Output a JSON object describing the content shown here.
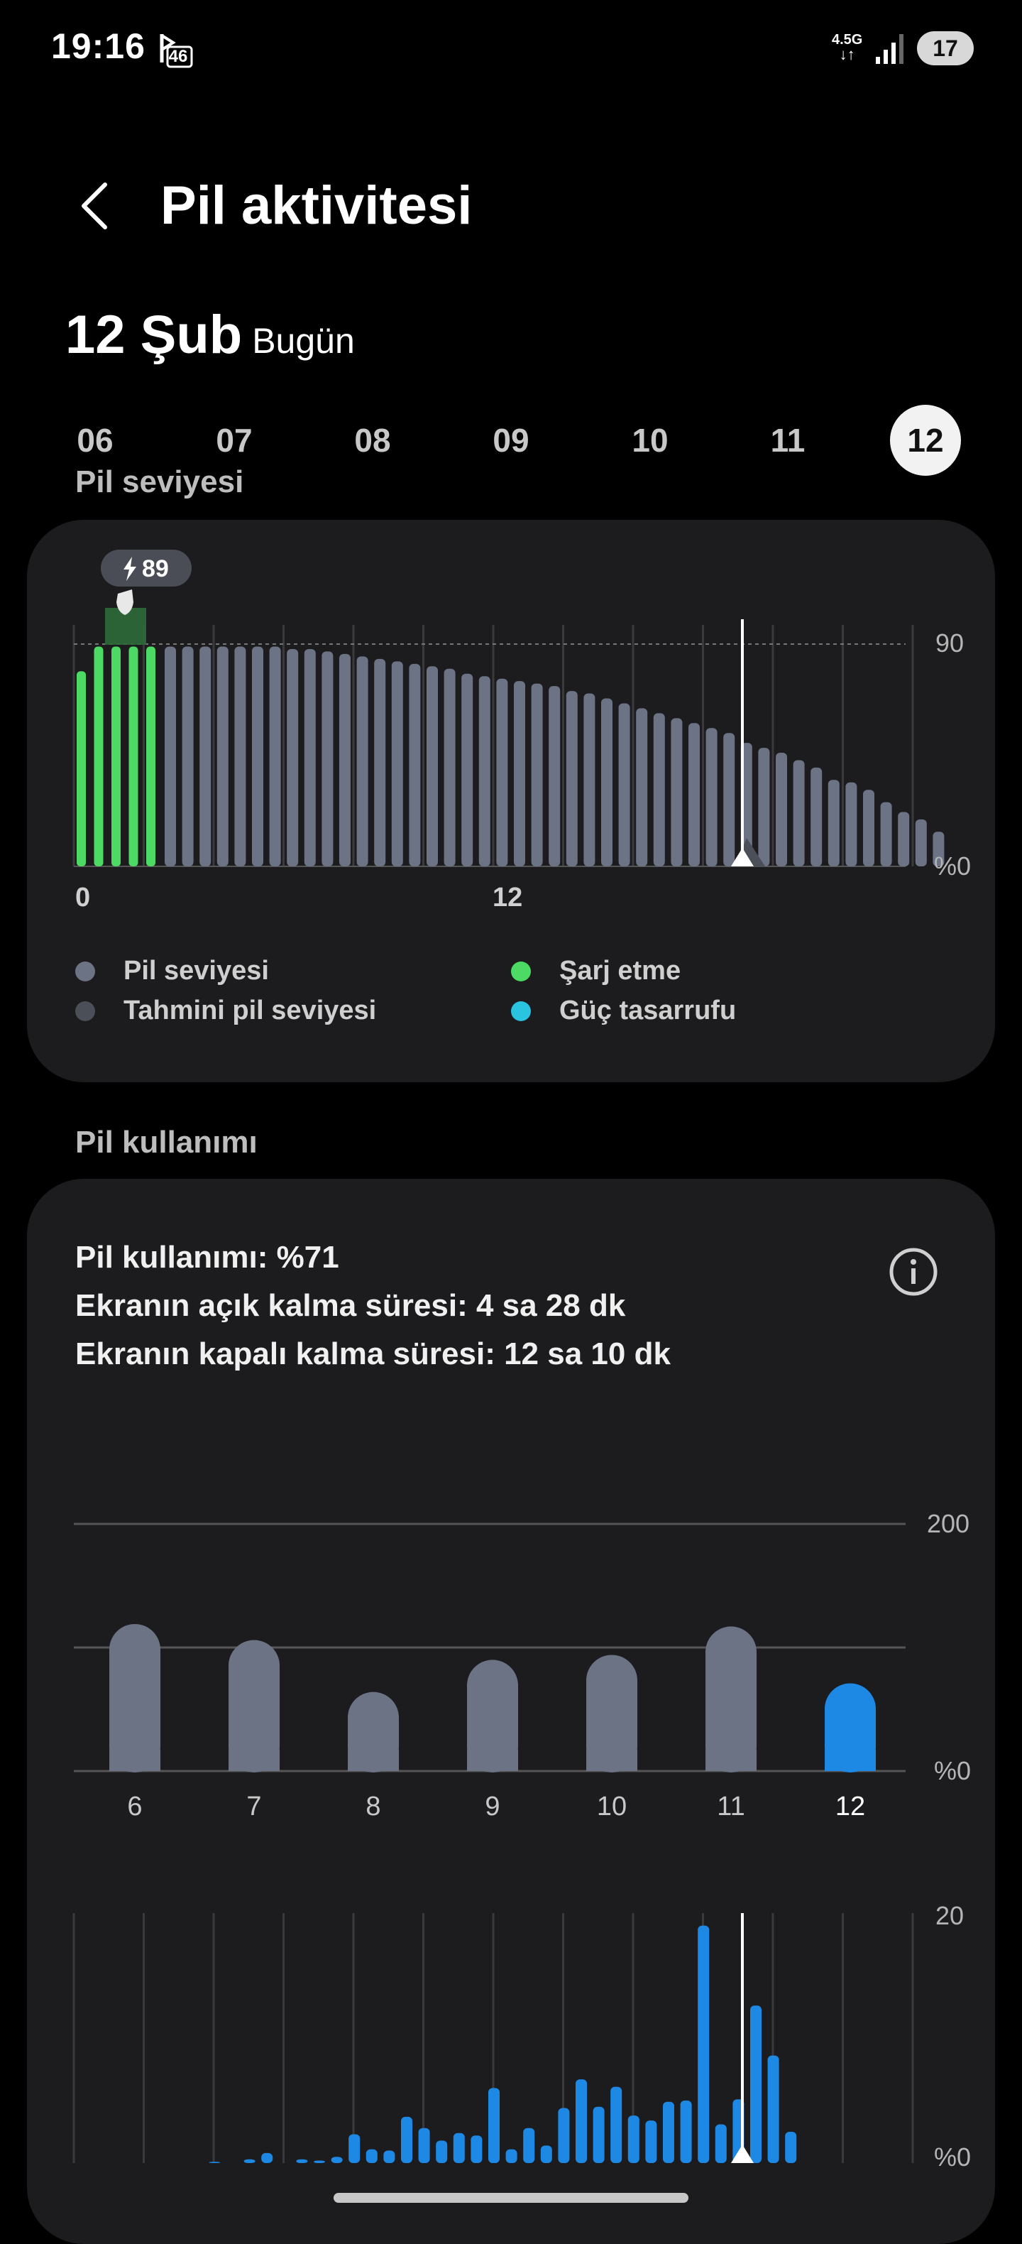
{
  "status_bar": {
    "time": "19:16",
    "notif_badge": "46",
    "network": "4.5G",
    "battery": "17"
  },
  "header": {
    "title": "Pil aktivitesi"
  },
  "date": {
    "main": "12 Şub",
    "sub": "Bugün"
  },
  "days": [
    "06",
    "07",
    "08",
    "09",
    "10",
    "11",
    "12"
  ],
  "selected_day": "12",
  "level_section": {
    "label": "Pil seviyesi",
    "charge_tag": "89",
    "y_top_label": "90",
    "y_bottom_label": "%0",
    "x_labels": [
      "0",
      "12"
    ],
    "legend": [
      {
        "label": "Pil seviyesi",
        "color": "#6b7385"
      },
      {
        "label": "Şarj etme",
        "color": "#4cd964"
      },
      {
        "label": "Tahmini pil seviyesi",
        "color": "#4a4f58"
      },
      {
        "label": "Güç tasarrufu",
        "color": "#2ac3e0"
      }
    ]
  },
  "usage_section": {
    "label": "Pil kullanımı",
    "lines": [
      "Pil kullanımı: %71",
      "Ekranın açık kalma süresi: 4 sa 28 dk",
      "Ekranın kapalı kalma süresi: 12 sa 10 dk"
    ],
    "info_icon": "info-icon"
  },
  "chart_data": [
    {
      "type": "bar",
      "title": "Pil seviyesi",
      "x_labels": [
        "0",
        "12"
      ],
      "ylim": [
        0,
        100
      ],
      "reference_line": 90,
      "series": [
        {
          "name": "Şarj etme",
          "values": [
            79,
            89,
            89,
            89,
            89
          ]
        },
        {
          "name": "Pil seviyesi",
          "values": [
            89,
            89,
            89,
            89,
            89,
            89,
            89,
            88,
            88,
            87,
            86,
            85,
            84,
            83,
            82,
            81,
            80,
            78,
            77,
            76,
            75,
            74,
            73,
            71,
            70,
            68,
            66,
            64,
            62,
            60,
            58,
            56,
            54,
            50,
            48,
            46,
            43,
            40,
            35,
            34,
            31,
            26,
            22,
            19,
            14
          ]
        }
      ],
      "current_time_marker": true
    },
    {
      "type": "bar",
      "categories": [
        "6",
        "7",
        "8",
        "9",
        "10",
        "11",
        "12"
      ],
      "values": [
        119,
        106,
        64,
        90,
        94,
        117,
        71
      ],
      "ylim": [
        0,
        200
      ],
      "y_tick_labels": [
        "200",
        "%0"
      ],
      "highlight": "12"
    },
    {
      "type": "bar",
      "ylim": [
        0,
        20
      ],
      "y_tick_labels": [
        "20",
        "%0"
      ],
      "values": [
        0,
        0,
        0,
        0,
        0.1,
        0,
        0.3,
        0.8,
        0,
        0.3,
        0.2,
        0.5,
        2.3,
        1.1,
        1.0,
        3.7,
        2.8,
        1.8,
        2.4,
        2.2,
        6.0,
        1.1,
        2.8,
        1.4,
        4.4,
        6.7,
        4.5,
        6.1,
        3.8,
        3.4,
        4.9,
        5.0,
        19.0,
        3.1,
        5.1,
        12.6,
        8.6,
        2.5
      ],
      "current_time_marker": true
    }
  ]
}
